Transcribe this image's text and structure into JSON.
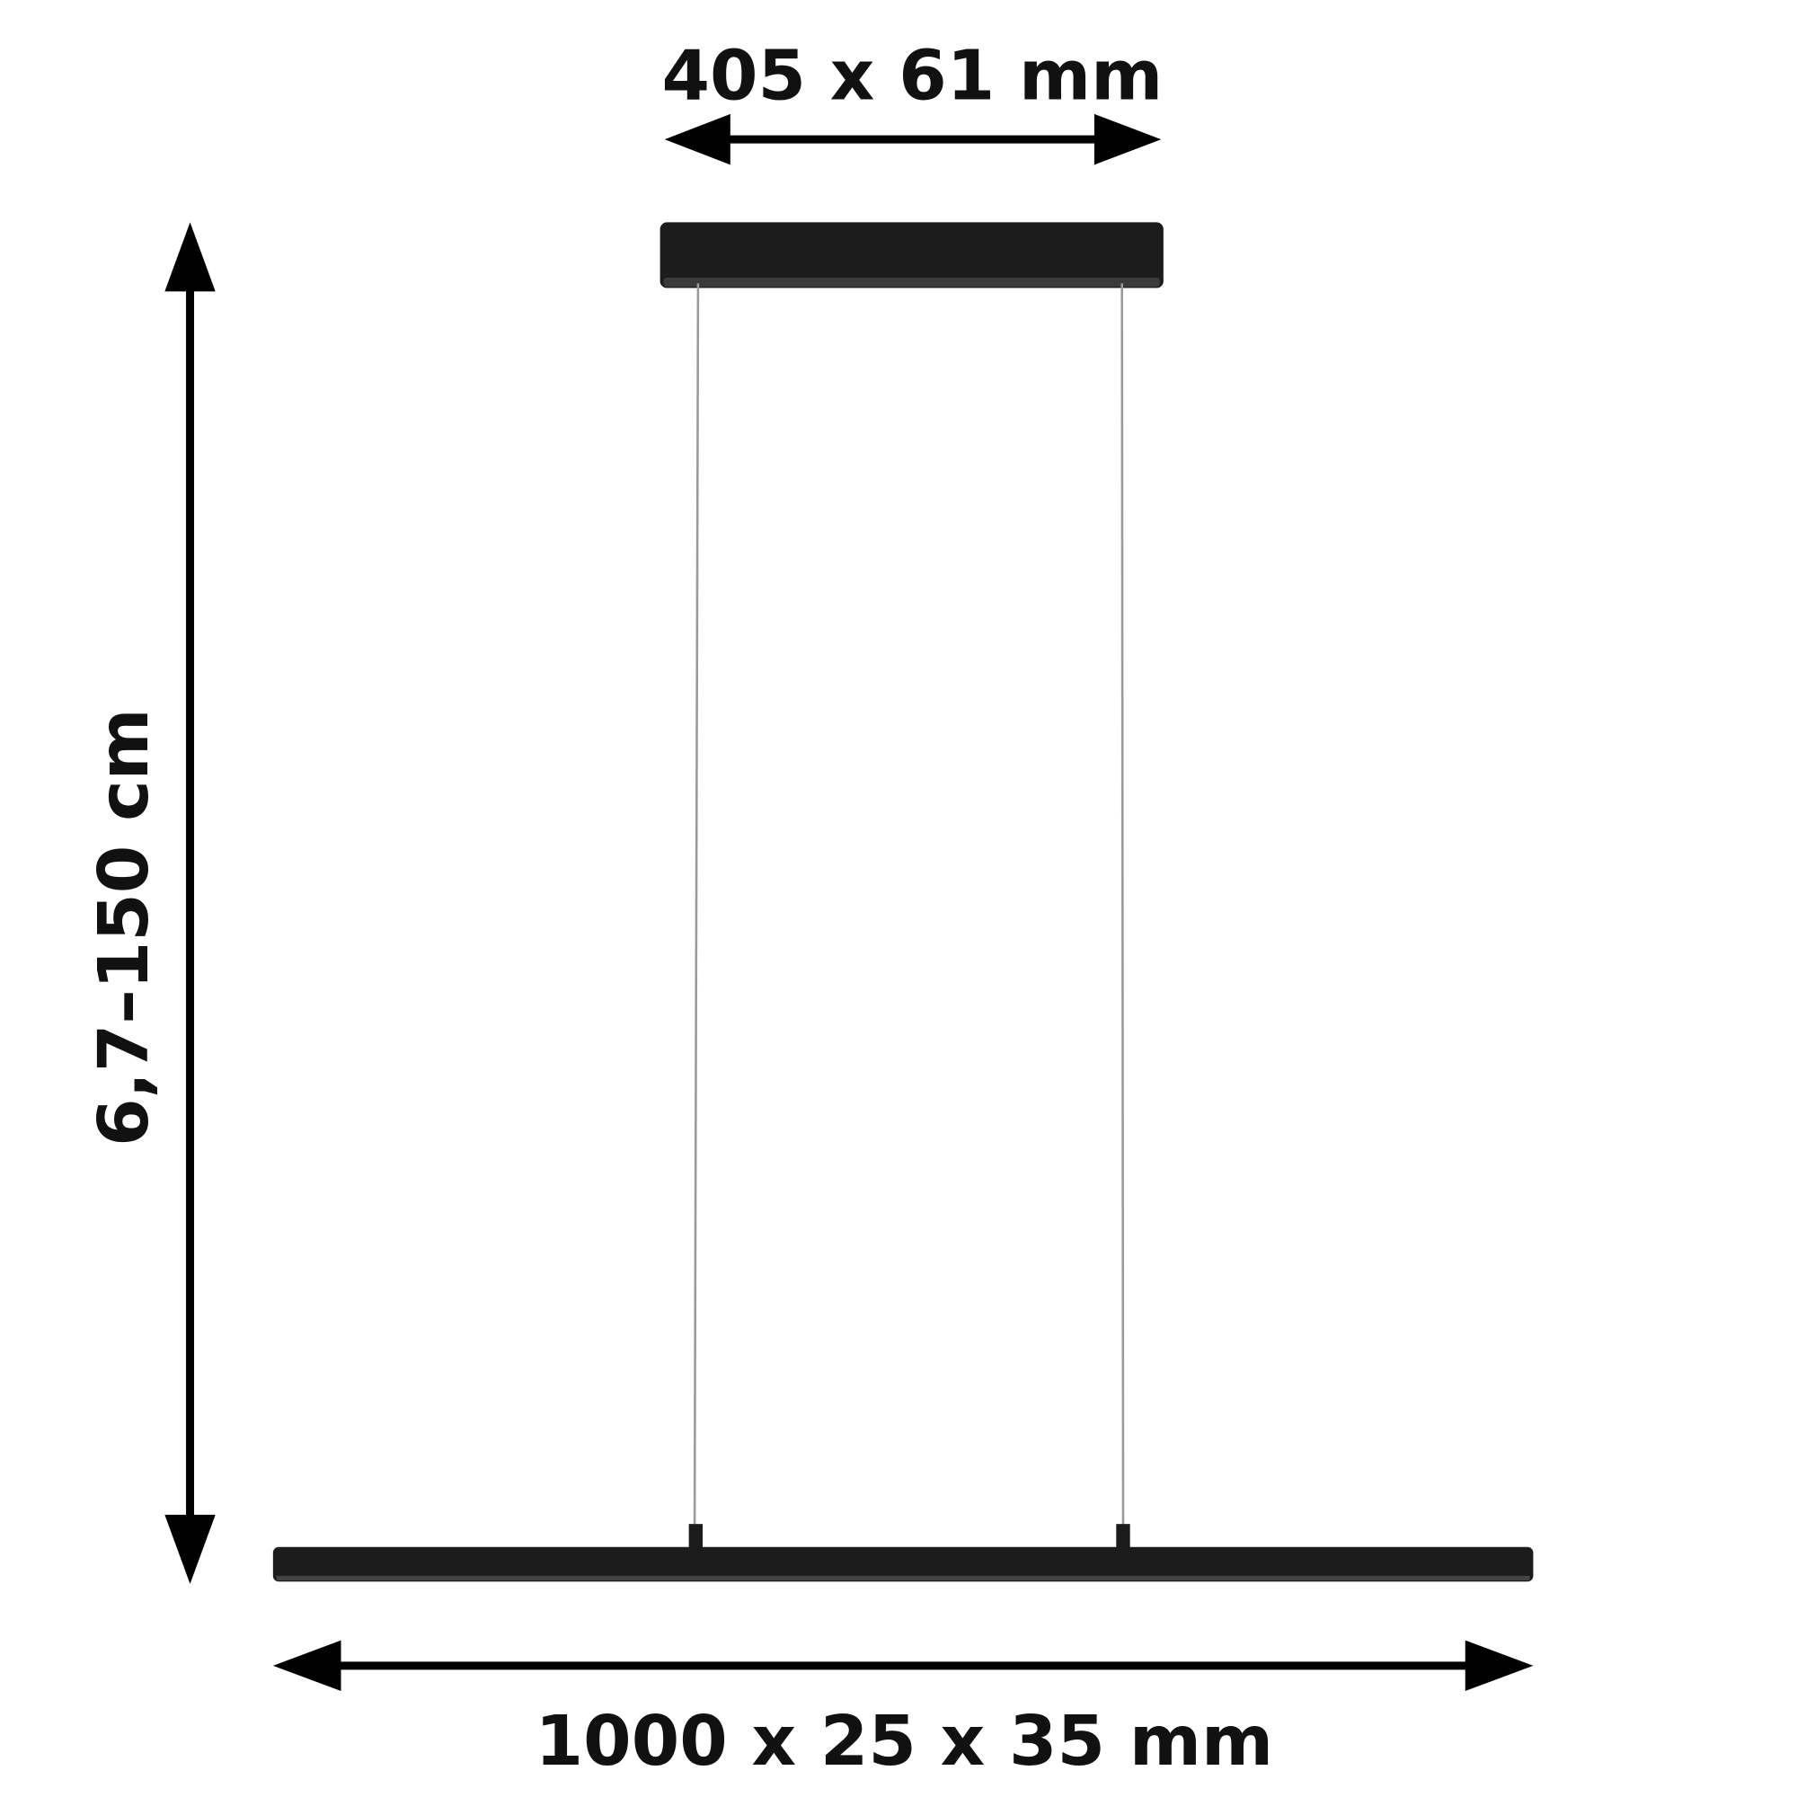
{
  "dimensions": {
    "canopy": "405 x 61 mm",
    "bar": "1000 x 25 x 35 mm",
    "height": "6,7–150 cm"
  },
  "colors": {
    "lamp": "#1c1c1c",
    "arrow": "#000000",
    "wire": "#9a9a9a",
    "background": "#ffffff"
  }
}
